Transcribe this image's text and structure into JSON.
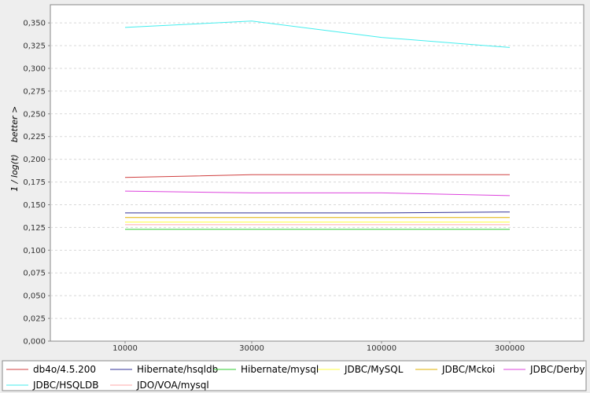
{
  "chart_data": {
    "type": "line",
    "title": "",
    "xlabel": "",
    "ylabel": "1 / log(t)",
    "ylabel_hint": "better >",
    "categories": [
      "10000",
      "30000",
      "100000",
      "300000"
    ],
    "y_ticks": [
      "0,000",
      "0,025",
      "0,050",
      "0,075",
      "0,100",
      "0,125",
      "0,150",
      "0,175",
      "0,200",
      "0,225",
      "0,250",
      "0,275",
      "0,300",
      "0,325",
      "0,350"
    ],
    "ylim": [
      0,
      0.37
    ],
    "grid": true,
    "legend_position": "bottom",
    "series": [
      {
        "name": "db4o/4.5.200",
        "color": "#d04040",
        "values": [
          0.18,
          0.183,
          0.183,
          0.183
        ]
      },
      {
        "name": "Hibernate/hsqldb",
        "color": "#333399",
        "values": [
          0.141,
          0.141,
          0.141,
          0.142
        ]
      },
      {
        "name": "Hibernate/mysql",
        "color": "#33cc33",
        "values": [
          0.123,
          0.123,
          0.123,
          0.123
        ]
      },
      {
        "name": "JDBC/MySQL",
        "color": "#ffff44",
        "values": [
          0.131,
          0.131,
          0.131,
          0.131
        ]
      },
      {
        "name": "JDBC/Mckoi",
        "color": "#e0b000",
        "values": [
          0.136,
          0.136,
          0.136,
          0.136
        ]
      },
      {
        "name": "JDBC/Derby",
        "color": "#dd44dd",
        "values": [
          0.165,
          0.163,
          0.163,
          0.16
        ]
      },
      {
        "name": "JDBC/HSQLDB",
        "color": "#44eeee",
        "values": [
          0.345,
          0.352,
          0.334,
          0.323
        ]
      },
      {
        "name": "JDO/VOA/mysql",
        "color": "#ffaaaa",
        "values": [
          0.128,
          0.128,
          0.128,
          0.128
        ]
      }
    ]
  }
}
